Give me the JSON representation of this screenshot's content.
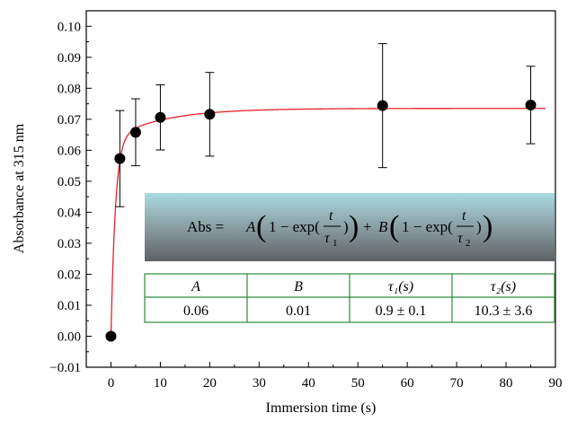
{
  "chart_data": {
    "type": "scatter",
    "xlabel": "Immersion time (s)",
    "ylabel": "Absorbance at 315 nm",
    "xlim": [
      -5,
      90
    ],
    "ylim": [
      -0.01,
      0.105
    ],
    "x_ticks": [
      "0",
      "10",
      "20",
      "30",
      "40",
      "50",
      "60",
      "70",
      "80",
      "90"
    ],
    "y_ticks": [
      "−0.01",
      "0.00",
      "0.01",
      "0.02",
      "0.03",
      "0.04",
      "0.05",
      "0.06",
      "0.07",
      "0.08",
      "0.09",
      "0.10"
    ],
    "grid": false,
    "points": [
      {
        "x": 0,
        "y": 0.0,
        "err": 0.0
      },
      {
        "x": 1.8,
        "y": 0.0573,
        "err": 0.0155
      },
      {
        "x": 5,
        "y": 0.0658,
        "err": 0.0108
      },
      {
        "x": 10,
        "y": 0.0706,
        "err": 0.0105
      },
      {
        "x": 20,
        "y": 0.0716,
        "err": 0.0135
      },
      {
        "x": 55,
        "y": 0.0744,
        "err": 0.02
      },
      {
        "x": 85,
        "y": 0.0746,
        "err": 0.0125
      }
    ],
    "fit": {
      "model": "Abs = A(1 − exp(t/τ1)) + B(1 − exp(t/τ2))",
      "A": 0.0635,
      "tau1": 0.9,
      "B": 0.01,
      "tau2": 10.3,
      "color": "#e8202a"
    },
    "point_color": "#000000"
  },
  "equation": {
    "lhs": "Abs = ",
    "A": "A",
    "B": "B",
    "one_minus_exp": "1 − exp(",
    "t": "t",
    "tau1": "τ",
    "tau1_sub": "1",
    "tau2": "τ",
    "tau2_sub": "2",
    "plus": "+",
    "close": ")"
  },
  "table": {
    "headers": [
      "A",
      "B",
      "τ₁(s)",
      "τ₂(s)"
    ],
    "values": [
      "0.06",
      "0.01",
      "0.9 ± 0.1",
      "10.3 ± 3.6"
    ],
    "border_color": "#2e8b3a"
  }
}
